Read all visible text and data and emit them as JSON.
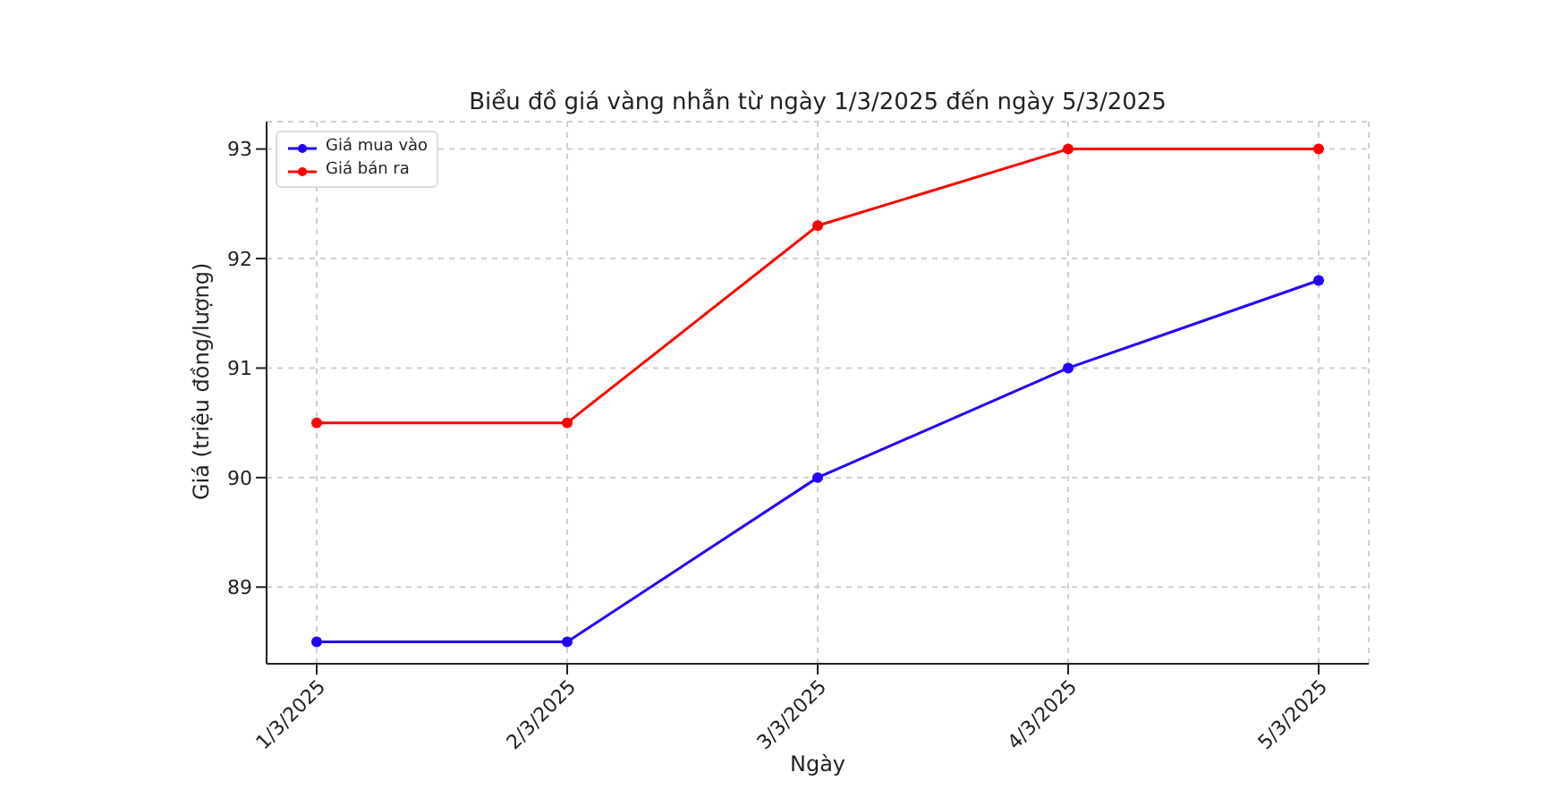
{
  "chart_data": {
    "type": "line",
    "title": "Biểu đồ giá vàng nhẫn từ ngày 1/3/2025 đến ngày 5/3/2025",
    "xlabel": "Ngày",
    "ylabel": "Giá (triệu đồng/lượng)",
    "categories": [
      "1/3/2025",
      "2/3/2025",
      "3/3/2025",
      "4/3/2025",
      "5/3/2025"
    ],
    "series": [
      {
        "name": "Giá mua vào",
        "color": "#2200ff",
        "values": [
          88.5,
          88.5,
          90,
          91,
          91.8
        ]
      },
      {
        "name": "Giá bán ra",
        "color": "#ff0000",
        "values": [
          90.5,
          90.5,
          92.3,
          93,
          93
        ]
      }
    ],
    "ylim": [
      88.3,
      93.25
    ],
    "yticks": [
      89,
      90,
      91,
      92,
      93
    ],
    "grid": true,
    "legend": "top left",
    "marker": "circle",
    "line_style": "solid"
  }
}
